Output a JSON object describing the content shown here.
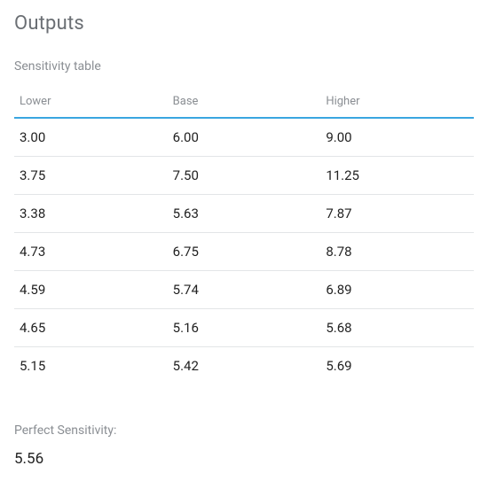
{
  "title": "Outputs",
  "table": {
    "label": "Sensitivity table",
    "columns": [
      "Lower",
      "Base",
      "Higher"
    ],
    "header_text_color": "#8a8e93",
    "header_fontsize": 13,
    "header_rule_color": "#3aa6e0",
    "header_rule_height": 2,
    "row_border_color": "#e3e5e7",
    "cell_text_color": "#222222",
    "cell_fontsize": 15,
    "rows": [
      [
        "3.00",
        "6.00",
        "9.00"
      ],
      [
        "3.75",
        "7.50",
        "11.25"
      ],
      [
        "3.38",
        "5.63",
        "7.87"
      ],
      [
        "4.73",
        "6.75",
        "8.78"
      ],
      [
        "4.59",
        "5.74",
        "6.89"
      ],
      [
        "4.65",
        "5.16",
        "5.68"
      ],
      [
        "5.15",
        "5.42",
        "5.69"
      ]
    ]
  },
  "result": {
    "label": "Perfect Sensitivity:",
    "value": "5.56"
  },
  "colors": {
    "background": "#ffffff",
    "title_color": "#6b6f74",
    "subtitle_color": "#8a8e93"
  }
}
